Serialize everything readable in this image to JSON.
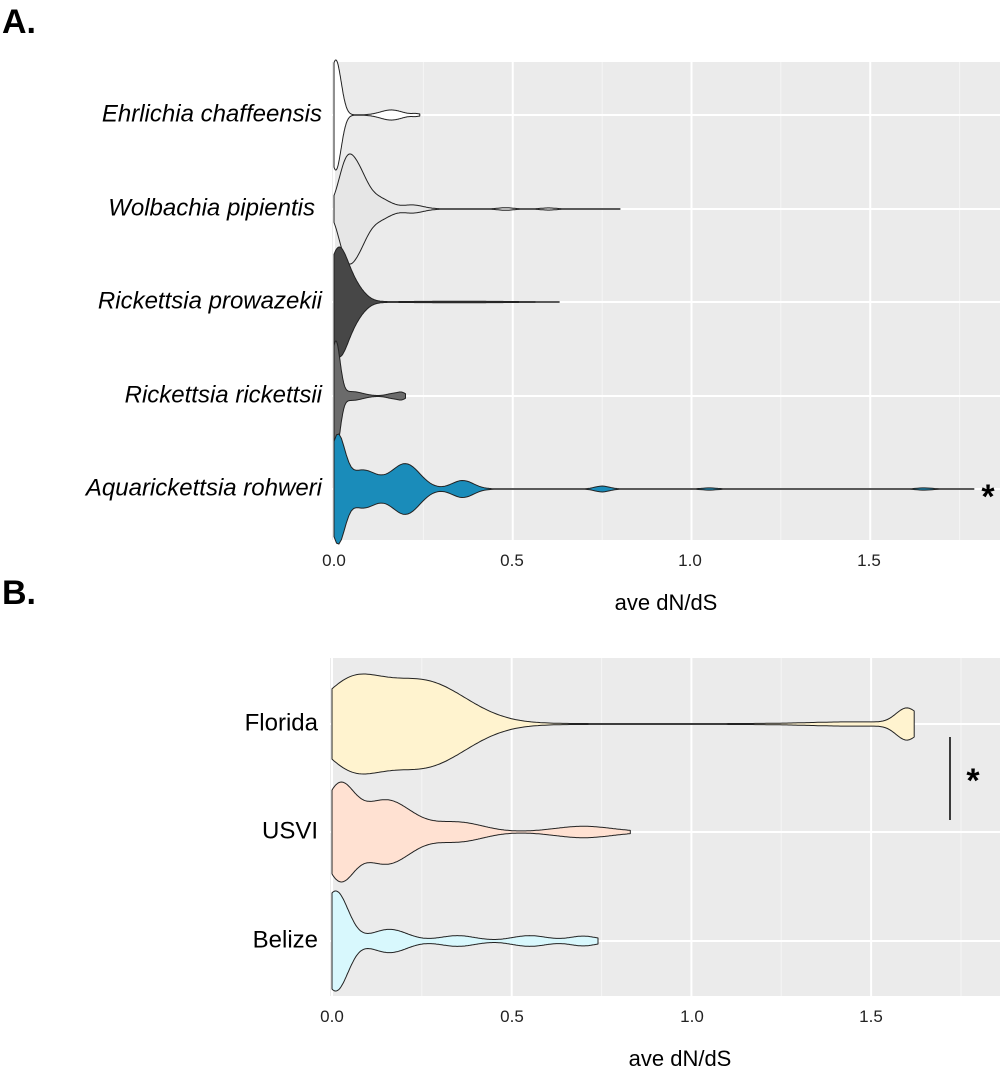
{
  "chart_data": [
    {
      "type": "violin",
      "panel_label": "A.",
      "orientation": "horizontal",
      "categories": [
        "Ehrlichia chaffeensis",
        "Wolbachia pipientis",
        "Rickettsia prowazekii",
        "Rickettsia rickettsii",
        "Aquarickettsia rohweri"
      ],
      "colors": [
        "#ffffff",
        "#e6e6e6",
        "#474747",
        "#6b6b6b",
        "#1a8cba"
      ],
      "max_values": [
        0.24,
        0.8,
        0.63,
        0.2,
        1.79
      ],
      "xlabel": "ave dN/dS",
      "xlim": [
        0,
        1.87
      ],
      "xticks": [
        "0.0",
        "0.5",
        "1.0",
        "1.5"
      ],
      "annotation": "*"
    },
    {
      "type": "violin",
      "panel_label": "B.",
      "orientation": "horizontal",
      "categories": [
        "Florida",
        "USVI",
        "Belize"
      ],
      "colors": [
        "#fff3cf",
        "#ffe1d2",
        "#d8f8fd"
      ],
      "max_values": [
        1.62,
        0.83,
        0.74
      ],
      "xlabel": "ave dN/dS",
      "xlim": [
        0,
        1.87
      ],
      "xticks": [
        "0.0",
        "0.5",
        "1.0",
        "1.5"
      ],
      "annotation": "*"
    }
  ]
}
